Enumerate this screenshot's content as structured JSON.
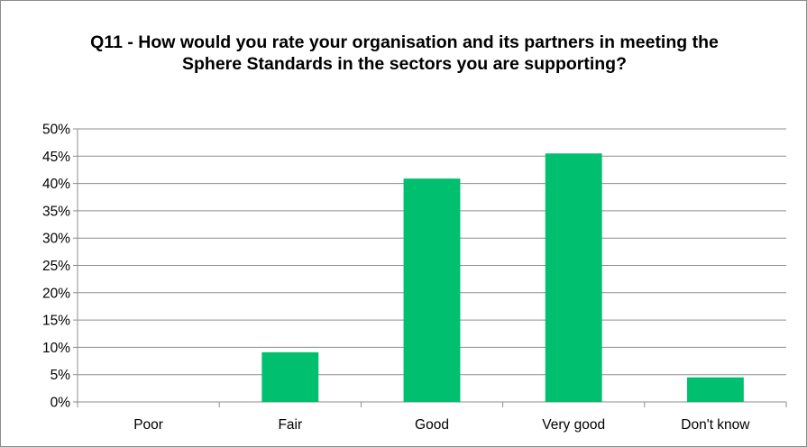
{
  "chart_data": {
    "type": "bar",
    "title": "Q11 - How would you rate your organisation and its partners in meeting the Sphere Standards in the sectors you are supporting?",
    "categories": [
      "Poor",
      "Fair",
      "Good",
      "Very good",
      "Don't know"
    ],
    "values": [
      0,
      9.1,
      40.9,
      45.5,
      4.5
    ],
    "ylim": [
      0,
      50
    ],
    "ytick_step": 5,
    "ytick_suffix": "%",
    "grid": true,
    "legend": "none",
    "bar_color": "#00bf6f"
  }
}
